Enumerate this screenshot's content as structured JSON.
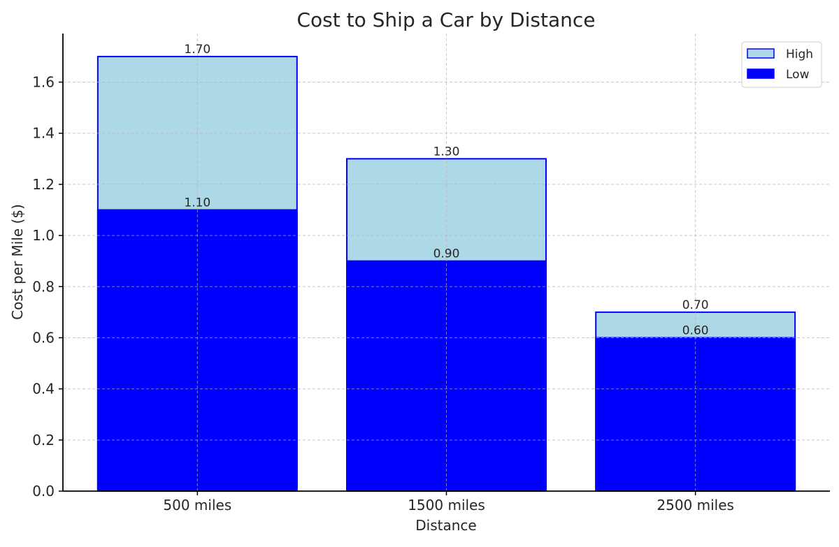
{
  "chart_data": {
    "type": "bar",
    "stacking": "overlay",
    "title": "Cost to Ship a Car by Distance",
    "xlabel": "Distance",
    "ylabel": "Cost per Mile ($)",
    "categories": [
      "500 miles",
      "1500 miles",
      "2500 miles"
    ],
    "series": [
      {
        "name": "High",
        "values": [
          1.7,
          1.3,
          0.7
        ],
        "color": "#add8e6",
        "edgecolor": "#0000ff"
      },
      {
        "name": "Low",
        "values": [
          1.1,
          0.9,
          0.6
        ],
        "color": "#0000ff",
        "edgecolor": "#0000ff"
      }
    ],
    "data_labels": {
      "High": [
        "1.70",
        "1.30",
        "0.70"
      ],
      "Low": [
        "1.10",
        "0.90",
        "0.60"
      ]
    },
    "ylim": [
      0,
      1.79
    ],
    "yticks": [
      "0.0",
      "0.2",
      "0.4",
      "0.6",
      "0.8",
      "1.0",
      "1.2",
      "1.4",
      "1.6"
    ],
    "grid": true,
    "legend": {
      "position": "top-right",
      "entries": [
        "High",
        "Low"
      ]
    }
  }
}
